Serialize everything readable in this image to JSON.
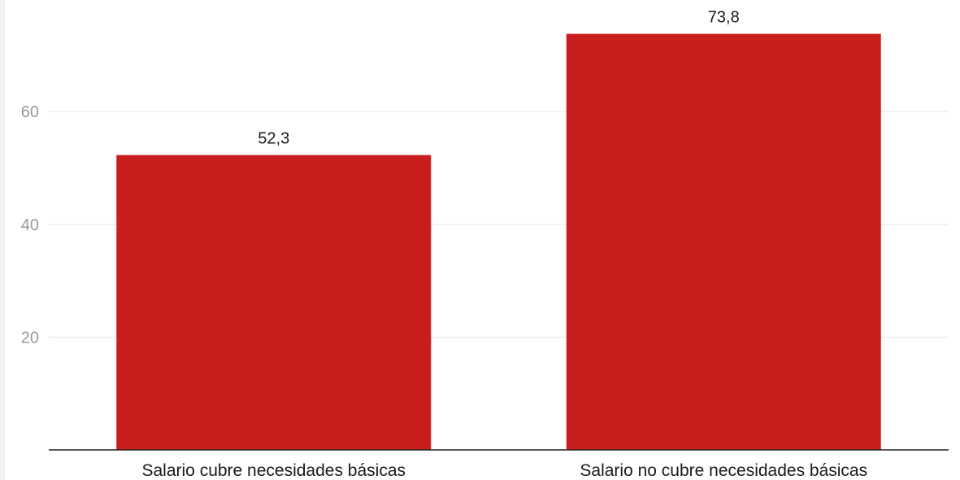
{
  "chart_data": {
    "type": "bar",
    "title": "",
    "xlabel": "",
    "ylabel": "",
    "categories": [
      "Salario cubre necesidades básicas",
      "Salario no cubre necesidades básicas"
    ],
    "values": [
      52.3,
      73.8
    ],
    "value_labels": [
      "52,3",
      "73,8"
    ],
    "yticks": [
      20,
      40,
      60
    ],
    "ytick_labels": [
      "20",
      "40",
      "60"
    ],
    "ylim": [
      0,
      80
    ],
    "grid": true,
    "legend": "none",
    "colors": {
      "bar": "#c81e1e",
      "grid": "#e6e6e6",
      "axis": "#222222"
    }
  }
}
